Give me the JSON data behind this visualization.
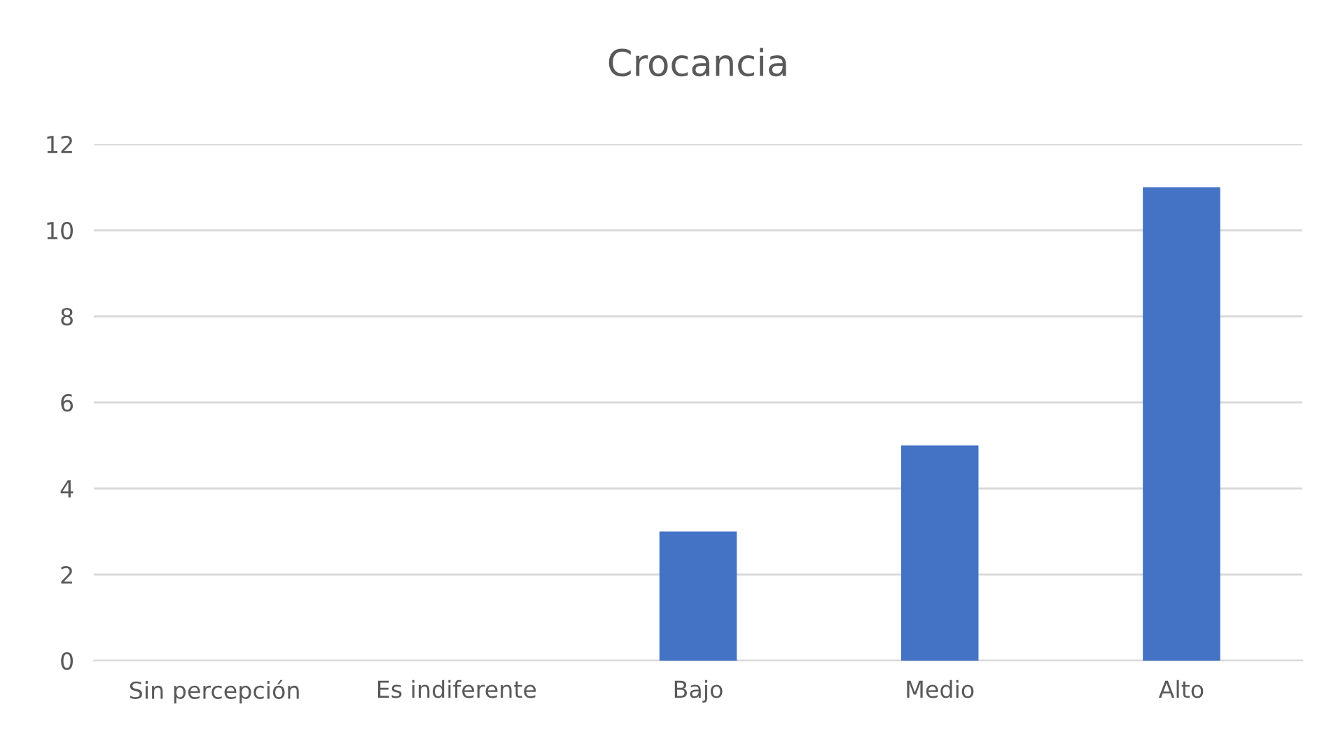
{
  "chart_data": {
    "type": "bar",
    "title": "Crocancia",
    "categories": [
      "Sin percepción",
      "Es indiferente",
      "Bajo",
      "Medio",
      "Alto"
    ],
    "values": [
      0,
      0,
      3,
      5,
      11
    ],
    "color": "#4472c4",
    "ylim": [
      0,
      12
    ],
    "yticks": [
      0,
      2,
      4,
      6,
      8,
      10,
      12
    ],
    "grid": "y",
    "legend": false
  }
}
